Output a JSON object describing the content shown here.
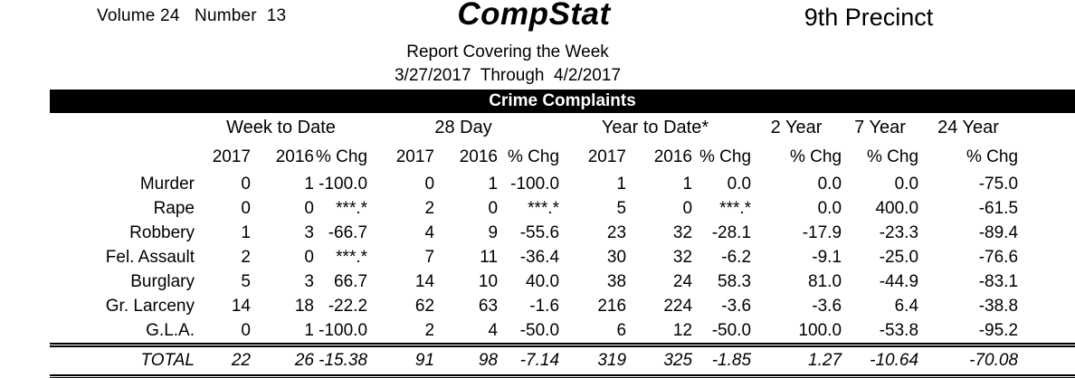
{
  "header": {
    "volume_label": "Volume 24   Number  13",
    "title": "CompStat",
    "precinct": "9th Precinct",
    "subtitle1": "Report Covering the Week",
    "subtitle2": "3/27/2017  Through  4/2/2017"
  },
  "table": {
    "banner": "Crime Complaints",
    "groups": [
      {
        "label": "Week to Date"
      },
      {
        "label": "28 Day"
      },
      {
        "label": "Year to Date*"
      },
      {
        "label": "2 Year"
      },
      {
        "label": "7 Year"
      },
      {
        "label": "24 Year"
      }
    ],
    "subheaders": [
      "",
      "2017",
      "2016",
      "% Chg",
      "2017",
      "2016",
      "% Chg",
      "2017",
      "2016",
      "% Chg",
      "% Chg",
      "% Chg",
      "% Chg"
    ],
    "rows": [
      {
        "label": "Murder",
        "values": [
          "0",
          "1",
          "-100.0",
          "0",
          "1",
          "-100.0",
          "1",
          "1",
          "0.0",
          "0.0",
          "0.0",
          "-75.0"
        ]
      },
      {
        "label": "Rape",
        "values": [
          "0",
          "0",
          "***.*",
          "2",
          "0",
          "***.*",
          "5",
          "0",
          "***.*",
          "0.0",
          "400.0",
          "-61.5"
        ]
      },
      {
        "label": "Robbery",
        "values": [
          "1",
          "3",
          "-66.7",
          "4",
          "9",
          "-55.6",
          "23",
          "32",
          "-28.1",
          "-17.9",
          "-23.3",
          "-89.4"
        ]
      },
      {
        "label": "Fel. Assault",
        "values": [
          "2",
          "0",
          "***.*",
          "7",
          "11",
          "-36.4",
          "30",
          "32",
          "-6.2",
          "-9.1",
          "-25.0",
          "-76.6"
        ]
      },
      {
        "label": "Burglary",
        "values": [
          "5",
          "3",
          "66.7",
          "14",
          "10",
          "40.0",
          "38",
          "24",
          "58.3",
          "81.0",
          "-44.9",
          "-83.1"
        ]
      },
      {
        "label": "Gr. Larceny",
        "values": [
          "14",
          "18",
          "-22.2",
          "62",
          "63",
          "-1.6",
          "216",
          "224",
          "-3.6",
          "-3.6",
          "6.4",
          "-38.8"
        ]
      },
      {
        "label": "G.L.A.",
        "values": [
          "0",
          "1",
          "-100.0",
          "2",
          "4",
          "-50.0",
          "6",
          "12",
          "-50.0",
          "100.0",
          "-53.8",
          "-95.2"
        ]
      }
    ],
    "total_row": {
      "label": "TOTAL",
      "values": [
        "22",
        "26",
        "-15.38",
        "91",
        "98",
        "-7.14",
        "319",
        "325",
        "-1.85",
        "1.27",
        "-10.64",
        "-70.08"
      ]
    },
    "colors": {
      "banner_bg": "#000000",
      "banner_text": "#ffffff",
      "text": "#000000"
    }
  }
}
